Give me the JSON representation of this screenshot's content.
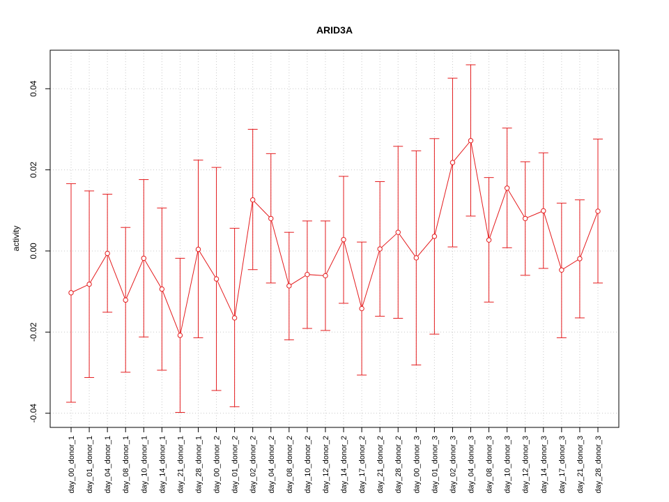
{
  "chart_data": {
    "type": "line",
    "title": "ARID3A",
    "xlabel": "",
    "ylabel": "activity",
    "ylim": [
      -0.0435,
      0.0495
    ],
    "y_ticks": [
      -0.04,
      -0.02,
      0.0,
      0.02,
      0.04
    ],
    "y_tick_labels": [
      "-0.04",
      "-0.02",
      "0.00",
      "0.02",
      "0.04"
    ],
    "grid": true,
    "line_color": "#e41a1c",
    "categories": [
      "day_00_donor_1",
      "day_01_donor_1",
      "day_04_donor_1",
      "day_08_donor_1",
      "day_10_donor_1",
      "day_14_donor_1",
      "day_21_donor_1",
      "day_28_donor_1",
      "day_00_donor_2",
      "day_01_donor_2",
      "day_02_donor_2",
      "day_04_donor_2",
      "day_08_donor_2",
      "day_10_donor_2",
      "day_12_donor_2",
      "day_14_donor_2",
      "day_17_donor_2",
      "day_21_donor_2",
      "day_28_donor_2",
      "day_00_donor_3",
      "day_01_donor_3",
      "day_02_donor_3",
      "day_04_donor_3",
      "day_08_donor_3",
      "day_10_donor_3",
      "day_12_donor_3",
      "day_14_donor_3",
      "day_17_donor_3",
      "day_21_donor_3",
      "day_28_donor_3"
    ],
    "values": [
      -0.0103,
      -0.0082,
      -0.0006,
      -0.0121,
      -0.0018,
      -0.0094,
      -0.0208,
      0.0004,
      -0.0069,
      -0.0165,
      0.0126,
      0.008,
      -0.0086,
      -0.0058,
      -0.0061,
      0.0028,
      -0.0142,
      0.0005,
      0.0046,
      -0.0017,
      0.0036,
      0.0218,
      0.0272,
      0.0027,
      0.0155,
      0.008,
      0.0099,
      -0.0047,
      -0.0019,
      0.0098
    ],
    "upper": [
      0.0166,
      0.0148,
      0.014,
      0.0058,
      0.0176,
      0.0106,
      -0.0018,
      0.0224,
      0.0206,
      0.0056,
      0.03,
      0.024,
      0.0046,
      0.0074,
      0.0074,
      0.0184,
      0.0022,
      0.0171,
      0.0258,
      0.0247,
      0.0277,
      0.0426,
      0.0459,
      0.0181,
      0.0303,
      0.022,
      0.0242,
      0.0118,
      0.0126,
      0.0276
    ],
    "lower": [
      -0.0373,
      -0.0312,
      -0.0151,
      -0.0299,
      -0.0212,
      -0.0294,
      -0.0398,
      -0.0214,
      -0.0344,
      -0.0384,
      -0.0046,
      -0.0079,
      -0.0219,
      -0.0191,
      -0.0196,
      -0.0129,
      -0.0306,
      -0.0161,
      -0.0166,
      -0.0281,
      -0.0205,
      0.001,
      0.0086,
      -0.0126,
      0.0008,
      -0.006,
      -0.0043,
      -0.0214,
      -0.0165,
      -0.0079
    ]
  }
}
